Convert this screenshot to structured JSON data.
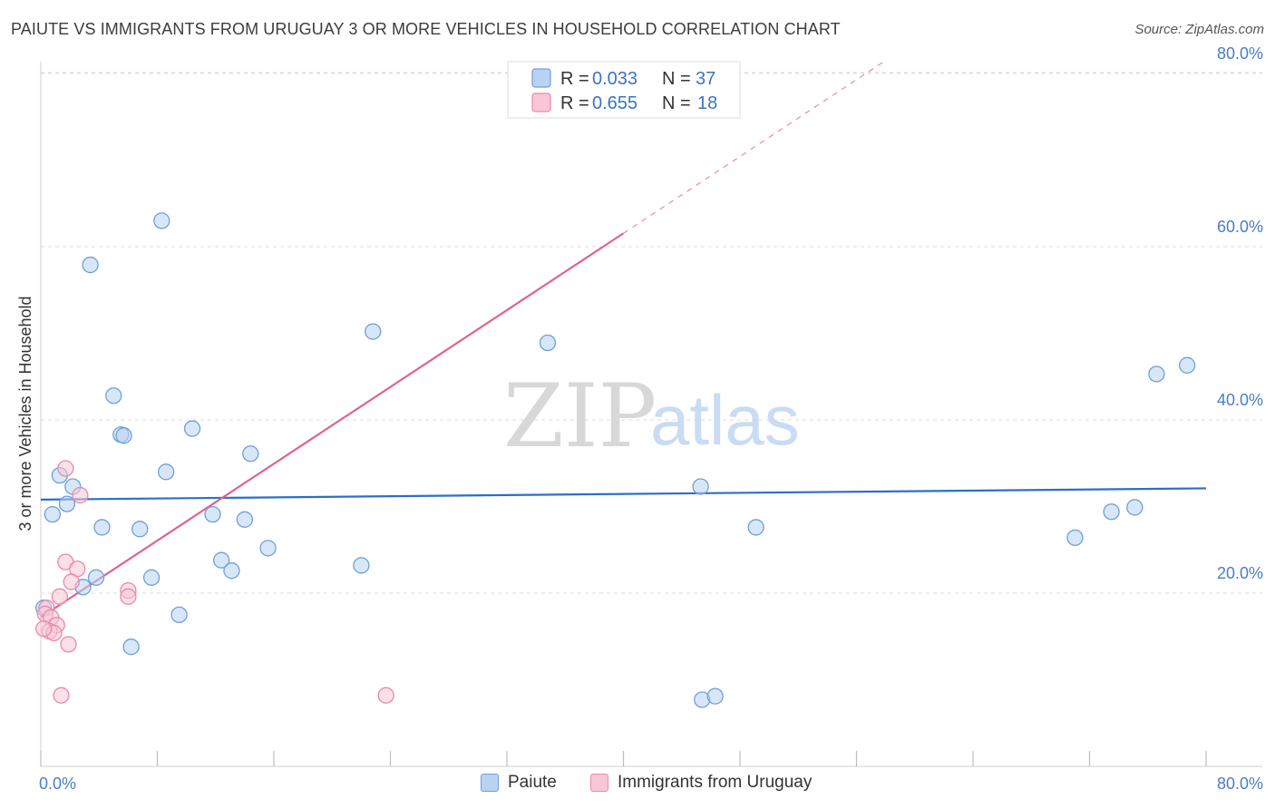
{
  "title": "PAIUTE VS IMMIGRANTS FROM URUGUAY 3 OR MORE VEHICLES IN HOUSEHOLD CORRELATION CHART",
  "source": "Source: ZipAtlas.com",
  "watermark": {
    "zip": "ZIP",
    "atlas": "atlas"
  },
  "legend": {
    "r_label": "R = ",
    "n_label": "N = ",
    "rows": [
      {
        "r": "0.033",
        "n": "37"
      },
      {
        "r": "0.655",
        "n": "18"
      }
    ]
  },
  "bottom_legend": [
    "Paiute",
    "Immigrants from Uruguay"
  ],
  "colors": {
    "paiute_fill": "#b8d3f2",
    "paiute_stroke": "#6f9fd9",
    "paiute_line": "#2a6fc9",
    "uruguay_fill": "#f8c6d6",
    "uruguay_stroke": "#e98aaa",
    "uruguay_line": "#e0628f"
  },
  "chart_data": {
    "type": "scatter",
    "title": "PAIUTE VS IMMIGRANTS FROM URUGUAY 3 OR MORE VEHICLES IN HOUSEHOLD CORRELATION CHART",
    "xlabel": "",
    "ylabel": "3 or more Vehicles in Household",
    "xlim": [
      0,
      80
    ],
    "ylim": [
      0,
      80
    ],
    "x_tick_labels": [
      "0.0%",
      "80.0%"
    ],
    "y_ticks": [
      20,
      40,
      60,
      80
    ],
    "y_tick_labels": [
      "20.0%",
      "40.0%",
      "60.0%",
      "80.0%"
    ],
    "grid": true,
    "series": [
      {
        "name": "Paiute",
        "r": 0.033,
        "n": 37,
        "trend": {
          "x": [
            0,
            80
          ],
          "y": [
            30.8,
            32.1
          ],
          "dashed_from": null
        },
        "points": [
          [
            8.3,
            63.0
          ],
          [
            3.4,
            57.9
          ],
          [
            22.8,
            50.2
          ],
          [
            34.8,
            48.9
          ],
          [
            76.6,
            45.3
          ],
          [
            78.7,
            46.3
          ],
          [
            5.0,
            42.8
          ],
          [
            5.5,
            38.3
          ],
          [
            5.7,
            38.2
          ],
          [
            10.4,
            39.0
          ],
          [
            14.4,
            36.1
          ],
          [
            8.6,
            34.0
          ],
          [
            1.3,
            33.6
          ],
          [
            2.2,
            32.3
          ],
          [
            45.3,
            32.3
          ],
          [
            1.8,
            30.3
          ],
          [
            0.8,
            29.1
          ],
          [
            75.1,
            29.9
          ],
          [
            73.5,
            29.4
          ],
          [
            11.8,
            29.1
          ],
          [
            14.0,
            28.5
          ],
          [
            4.2,
            27.6
          ],
          [
            6.8,
            27.4
          ],
          [
            49.1,
            27.6
          ],
          [
            71.0,
            26.4
          ],
          [
            15.6,
            25.2
          ],
          [
            12.4,
            23.8
          ],
          [
            22.0,
            23.2
          ],
          [
            13.1,
            22.6
          ],
          [
            3.8,
            21.8
          ],
          [
            7.6,
            21.8
          ],
          [
            2.9,
            20.7
          ],
          [
            9.5,
            17.5
          ],
          [
            0.2,
            18.3
          ],
          [
            6.2,
            13.8
          ],
          [
            45.4,
            7.7
          ],
          [
            46.3,
            8.1
          ]
        ]
      },
      {
        "name": "Immigrants from Uruguay",
        "r": 0.655,
        "n": 18,
        "trend": {
          "x": [
            0,
            58
          ],
          "y": [
            17.2,
            81.5
          ],
          "solid_until_x": 40
        },
        "points": [
          [
            1.7,
            34.4
          ],
          [
            2.7,
            31.3
          ],
          [
            1.7,
            23.6
          ],
          [
            2.5,
            22.8
          ],
          [
            2.1,
            21.3
          ],
          [
            6.0,
            20.3
          ],
          [
            6.0,
            19.6
          ],
          [
            1.3,
            19.6
          ],
          [
            0.4,
            18.3
          ],
          [
            0.3,
            17.6
          ],
          [
            0.7,
            17.2
          ],
          [
            1.1,
            16.3
          ],
          [
            0.6,
            15.6
          ],
          [
            0.9,
            15.4
          ],
          [
            1.9,
            14.1
          ],
          [
            1.4,
            8.2
          ],
          [
            23.7,
            8.2
          ],
          [
            0.2,
            15.9
          ]
        ]
      }
    ]
  }
}
